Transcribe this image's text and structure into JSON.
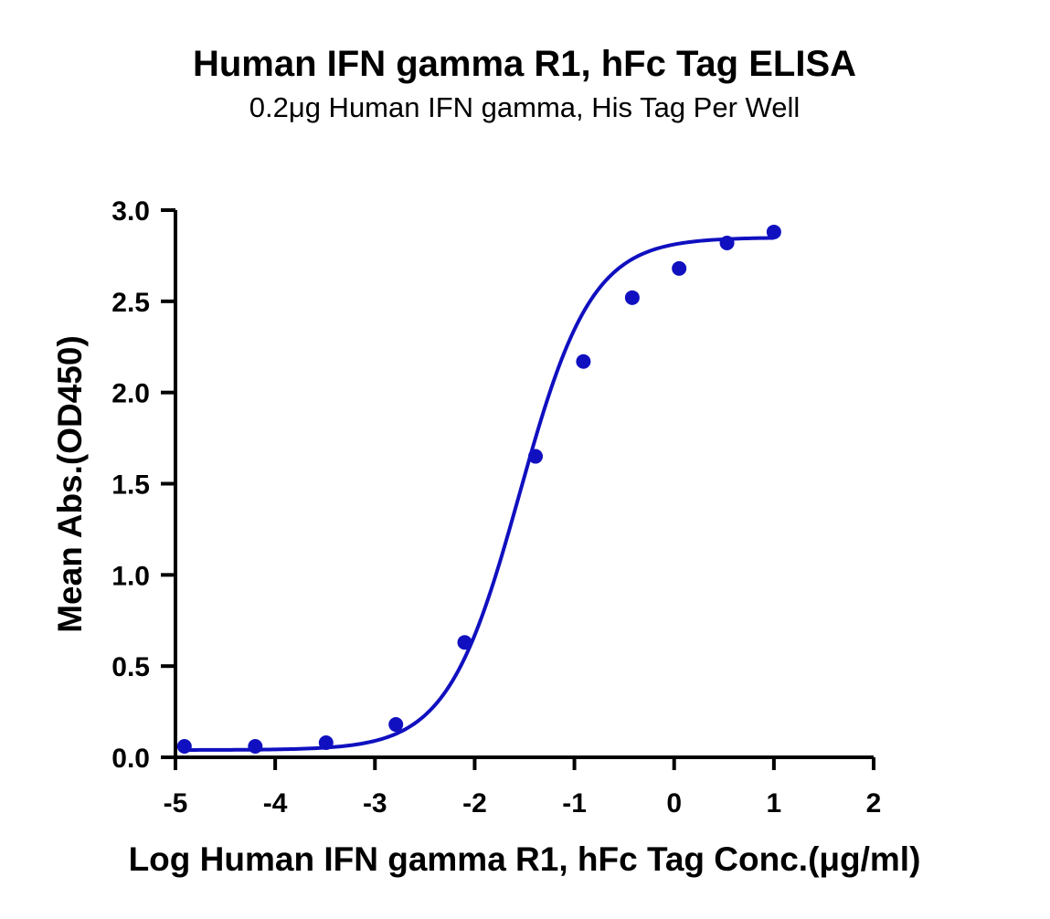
{
  "chart_data": {
    "type": "scatter",
    "title": "Human IFN gamma R1, hFc Tag ELISA",
    "subtitle": "0.2μg Human IFN gamma, His Tag Per Well",
    "xlabel": "Log Human IFN gamma R1, hFc Tag Conc.(μg/ml)",
    "ylabel": "Mean Abs.(OD450)",
    "xlim": [
      -5,
      2
    ],
    "ylim": [
      0,
      3
    ],
    "x_ticks": [
      "-5",
      "-4",
      "-3",
      "-2",
      "-1",
      "0",
      "1",
      "2"
    ],
    "y_ticks": [
      "0.0",
      "0.5",
      "1.0",
      "1.5",
      "2.0",
      "2.5",
      "3.0"
    ],
    "grid": false,
    "color": "#1010c0",
    "series": [
      {
        "x": [
          -4.91,
          -4.2,
          -3.49,
          -2.79,
          -2.1,
          -1.39,
          -0.91,
          -0.42,
          0.05,
          0.53,
          1.0
        ],
        "y": [
          0.06,
          0.06,
          0.08,
          0.18,
          0.63,
          1.65,
          2.17,
          2.52,
          2.68,
          2.82,
          2.88
        ]
      }
    ],
    "fit_curve": {
      "model": "4PL",
      "bottom": 0.04,
      "top": 2.85,
      "logEC50": -1.55,
      "hill_slope": 1.2,
      "x_range": [
        -4.91,
        1.0
      ]
    }
  }
}
